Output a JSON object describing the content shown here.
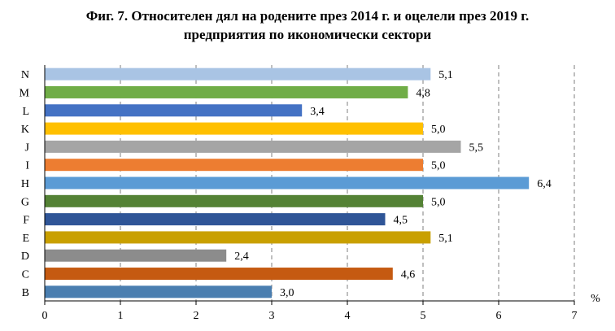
{
  "title_line1": "Фиг. 7. Относителен дял на родените през 2014 г. и оцелели през 2019 г.",
  "title_line2": "предприятия по икономически сектори",
  "chart_data": {
    "type": "bar",
    "orientation": "horizontal",
    "xlim": [
      0,
      7
    ],
    "x_ticks": [
      0,
      1,
      2,
      3,
      4,
      5,
      6,
      7
    ],
    "unit_label": "%",
    "grid": "vertical dashed",
    "categories": [
      "N",
      "M",
      "L",
      "K",
      "J",
      "I",
      "H",
      "G",
      "F",
      "E",
      "D",
      "C",
      "B"
    ],
    "values": [
      5.1,
      4.8,
      3.4,
      5.0,
      5.5,
      5.0,
      6.4,
      5.0,
      4.5,
      5.1,
      2.4,
      4.6,
      3.0
    ],
    "value_labels": [
      "5,1",
      "4,8",
      "3,4",
      "5,0",
      "5,5",
      "5,0",
      "6,4",
      "5,0",
      "4,5",
      "5,1",
      "2,4",
      "4,6",
      "3,0"
    ],
    "colors": [
      "#a9c4e4",
      "#70ad47",
      "#4472c4",
      "#ffc000",
      "#a5a5a5",
      "#ed7d31",
      "#5b9bd5",
      "#548235",
      "#2f5597",
      "#c9a000",
      "#8c8c8c",
      "#c55a11",
      "#4a7eb0"
    ]
  }
}
